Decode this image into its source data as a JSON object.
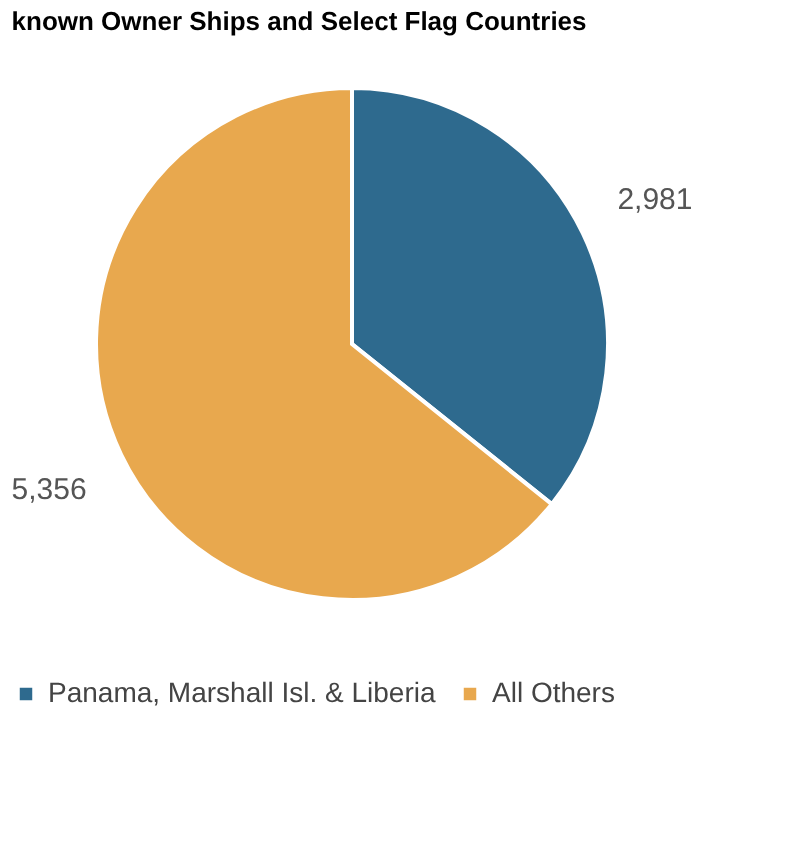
{
  "chart_data": {
    "type": "pie",
    "title": "known Owner Ships and Select Flag Countries",
    "categories": [
      "Panama, Marshall Isl. & Liberia",
      "All Others"
    ],
    "values": [
      2981,
      5356
    ],
    "colors": [
      "#2e6a8e",
      "#e8a84e"
    ],
    "value_labels": [
      "2,981",
      "5,356"
    ],
    "legend": "bottom"
  }
}
